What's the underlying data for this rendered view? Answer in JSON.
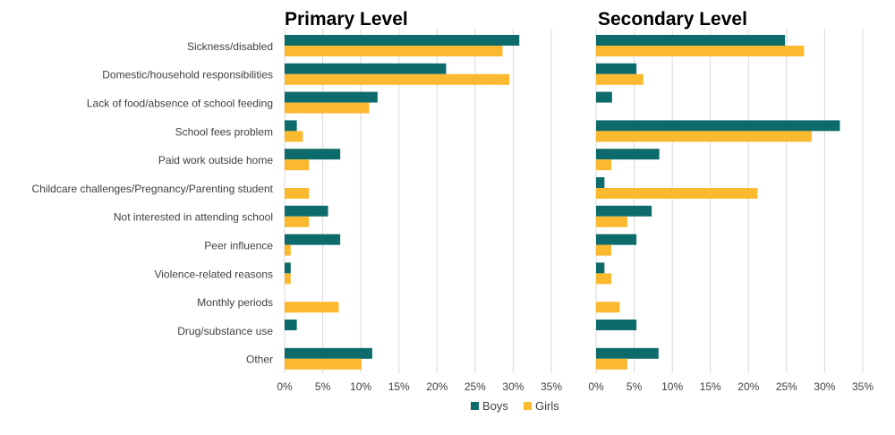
{
  "chart_data": {
    "type": "bar",
    "orientation": "horizontal",
    "categories": [
      "Sickness/disabled",
      "Domestic/household responsibilities",
      "Lack of food/absence of school feeding",
      "School fees problem",
      "Paid work outside home",
      "Childcare challenges/Pregnancy/Parenting student",
      "Not interested in attending school",
      "Peer influence",
      "Violence-related reasons",
      "Monthly periods",
      "Drug/substance use",
      "Other"
    ],
    "xlim": [
      0,
      35
    ],
    "xticks": [
      "0%",
      "5%",
      "10%",
      "15%",
      "20%",
      "25%",
      "30%",
      "35%"
    ],
    "grid": true,
    "legend_position": "bottom",
    "legend": [
      {
        "name": "Boys",
        "color": "#0e6b6b"
      },
      {
        "name": "Girls",
        "color": "#fbb92f"
      }
    ],
    "panels": [
      {
        "title": "Primary Level",
        "series": [
          {
            "name": "Boys",
            "color": "#0e6b6b",
            "values": [
              30.8,
              21.2,
              12.2,
              1.6,
              7.3,
              0,
              5.7,
              7.3,
              0.8,
              0,
              1.6,
              11.5
            ]
          },
          {
            "name": "Girls",
            "color": "#fbb92f",
            "values": [
              28.6,
              29.5,
              11.1,
              2.4,
              3.2,
              3.2,
              3.2,
              0.8,
              0.8,
              7.1,
              0,
              10.1
            ]
          }
        ]
      },
      {
        "title": "Secondary Level",
        "series": [
          {
            "name": "Boys",
            "color": "#0e6b6b",
            "values": [
              24.8,
              5.3,
              2.1,
              32.0,
              8.3,
              1.1,
              7.3,
              5.3,
              1.1,
              0,
              5.3,
              8.2
            ]
          },
          {
            "name": "Girls",
            "color": "#fbb92f",
            "values": [
              27.3,
              6.2,
              0,
              28.3,
              2.0,
              21.2,
              4.1,
              2.0,
              2.0,
              3.1,
              0,
              4.1
            ]
          }
        ]
      }
    ]
  }
}
